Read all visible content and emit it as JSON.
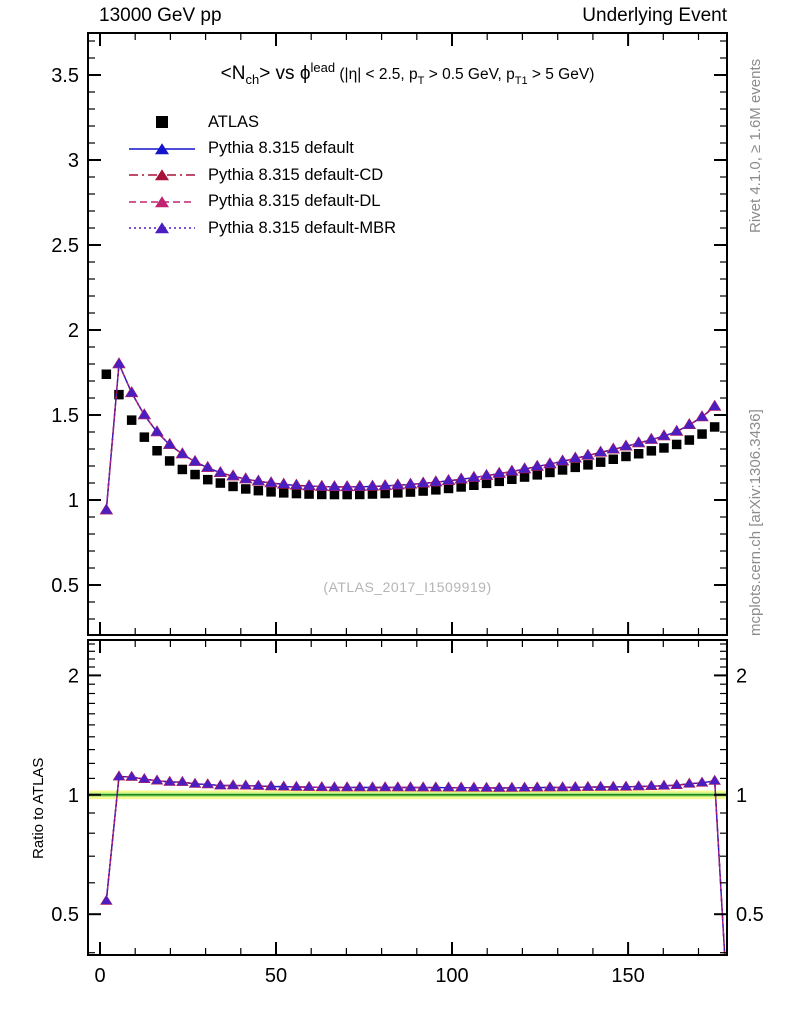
{
  "header": {
    "left": "13000 GeV pp",
    "right": "Underlying Event"
  },
  "side_labels": {
    "right_top": "Rivet 4.1.0, ≥ 1.6M events",
    "right_bottom": "mcplots.cern.ch [arXiv:1306.3436]",
    "watermark": "(ATLAS_2017_I1509919)",
    "ratio_ylabel": "Ratio to ATLAS"
  },
  "chart_data": {
    "type": "scatter",
    "panels": [
      "main",
      "ratio"
    ],
    "title_plain": "<N_ch> vs φ^lead (|η| < 2.5, p_T > 0.5 GeV, p_T1 > 5 GeV)",
    "title_segments": [
      {
        "t": "<N",
        "s": "t1"
      },
      {
        "t": "ch",
        "s": "t1sub"
      },
      {
        "t": "> vs ",
        "s": "t1"
      },
      {
        "t": "ϕ",
        "s": "t1"
      },
      {
        "t": "lead",
        "s": "t1sup"
      },
      {
        "t": " (|η| < 2.5, p",
        "s": "t2"
      },
      {
        "t": "T",
        "s": "t2sub"
      },
      {
        "t": " > 0.5 GeV, p",
        "s": "t2"
      },
      {
        "t": "T1",
        "s": "t2sub"
      },
      {
        "t": " > 5 GeV)",
        "s": "t2"
      }
    ],
    "x_bins": [
      1.8,
      5.4,
      9,
      12.6,
      16.2,
      19.8,
      23.4,
      27,
      30.6,
      34.2,
      37.8,
      41.4,
      45,
      48.6,
      52.2,
      55.8,
      59.4,
      63,
      66.6,
      70.2,
      73.8,
      77.4,
      81,
      84.6,
      88.2,
      91.8,
      95.4,
      99,
      102.6,
      106.2,
      109.8,
      113.4,
      117,
      120.6,
      124.2,
      127.8,
      131.4,
      135,
      138.6,
      142.2,
      145.8,
      149.4,
      153,
      156.6,
      160.2,
      163.8,
      167.4,
      171,
      174.6
    ],
    "series": [
      {
        "label": "ATLAS",
        "marker": "square",
        "color": "#000000",
        "line": "none",
        "values": [
          1.74,
          1.62,
          1.47,
          1.37,
          1.29,
          1.23,
          1.18,
          1.15,
          1.12,
          1.1,
          1.08,
          1.065,
          1.055,
          1.048,
          1.042,
          1.038,
          1.035,
          1.033,
          1.032,
          1.032,
          1.033,
          1.035,
          1.038,
          1.042,
          1.047,
          1.053,
          1.06,
          1.068,
          1.077,
          1.087,
          1.098,
          1.11,
          1.122,
          1.135,
          1.148,
          1.162,
          1.177,
          1.192,
          1.207,
          1.223,
          1.24,
          1.256,
          1.272,
          1.289,
          1.306,
          1.327,
          1.353,
          1.388,
          1.43
        ]
      },
      {
        "label": "Pythia 8.315 default",
        "marker": "triangle",
        "color": "#1414cc",
        "line": "solid",
        "values": [
          0.94,
          1.8,
          1.63,
          1.5,
          1.4,
          1.325,
          1.27,
          1.225,
          1.19,
          1.16,
          1.14,
          1.123,
          1.11,
          1.1,
          1.092,
          1.086,
          1.082,
          1.079,
          1.077,
          1.077,
          1.078,
          1.08,
          1.083,
          1.087,
          1.092,
          1.098,
          1.105,
          1.113,
          1.122,
          1.132,
          1.143,
          1.155,
          1.168,
          1.182,
          1.197,
          1.212,
          1.228,
          1.245,
          1.262,
          1.28,
          1.298,
          1.316,
          1.335,
          1.355,
          1.376,
          1.403,
          1.442,
          1.488,
          1.55
        ]
      },
      {
        "label": "Pythia 8.315 default-CD",
        "marker": "triangle",
        "color": "#a81238",
        "line": "dashdot",
        "values": [
          0.94,
          1.8,
          1.63,
          1.5,
          1.4,
          1.325,
          1.27,
          1.225,
          1.19,
          1.16,
          1.14,
          1.123,
          1.11,
          1.1,
          1.092,
          1.086,
          1.082,
          1.079,
          1.077,
          1.077,
          1.078,
          1.08,
          1.083,
          1.087,
          1.092,
          1.098,
          1.105,
          1.113,
          1.122,
          1.132,
          1.143,
          1.155,
          1.168,
          1.182,
          1.197,
          1.212,
          1.228,
          1.245,
          1.262,
          1.28,
          1.298,
          1.316,
          1.335,
          1.355,
          1.376,
          1.403,
          1.442,
          1.488,
          1.55
        ]
      },
      {
        "label": "Pythia 8.315 default-DL",
        "marker": "triangle",
        "color": "#c02470",
        "line": "dashed",
        "values": [
          0.94,
          1.8,
          1.63,
          1.5,
          1.4,
          1.325,
          1.27,
          1.225,
          1.19,
          1.16,
          1.14,
          1.123,
          1.11,
          1.1,
          1.092,
          1.086,
          1.082,
          1.079,
          1.077,
          1.077,
          1.078,
          1.08,
          1.083,
          1.087,
          1.092,
          1.098,
          1.105,
          1.113,
          1.122,
          1.132,
          1.143,
          1.155,
          1.168,
          1.182,
          1.197,
          1.212,
          1.228,
          1.245,
          1.262,
          1.28,
          1.298,
          1.316,
          1.335,
          1.355,
          1.376,
          1.403,
          1.442,
          1.488,
          1.55
        ]
      },
      {
        "label": "Pythia 8.315 default-MBR",
        "marker": "triangle",
        "color": "#4a1ec0",
        "line": "dotted",
        "values": [
          0.94,
          1.8,
          1.63,
          1.5,
          1.4,
          1.325,
          1.27,
          1.225,
          1.19,
          1.16,
          1.14,
          1.123,
          1.11,
          1.1,
          1.092,
          1.086,
          1.082,
          1.079,
          1.077,
          1.077,
          1.078,
          1.08,
          1.083,
          1.087,
          1.092,
          1.098,
          1.105,
          1.113,
          1.122,
          1.132,
          1.143,
          1.155,
          1.168,
          1.182,
          1.197,
          1.212,
          1.228,
          1.245,
          1.262,
          1.28,
          1.298,
          1.316,
          1.335,
          1.355,
          1.376,
          1.403,
          1.442,
          1.488,
          1.55
        ]
      }
    ],
    "ratio": {
      "reference": "ATLAS",
      "tail": {
        "x": 178.2,
        "value": 0.3
      },
      "band": {
        "yellow": [
          0.975,
          1.025
        ],
        "green": [
          0.988,
          1.012
        ],
        "line_at": 1.0,
        "yellow_color": "#f7f98b",
        "green_color": "#a6e77e",
        "line_color": "#0b7a0b"
      }
    },
    "axes": {
      "x": {
        "lim": [
          -3.4,
          178.1
        ],
        "major": [
          0,
          50,
          100,
          150
        ],
        "labels": [
          "0",
          "50",
          "100",
          "150"
        ],
        "minor_step": 10
      },
      "y_main": {
        "scale": "linear",
        "lim": [
          0.206,
          3.747
        ],
        "major": [
          0.5,
          1,
          1.5,
          2,
          2.5,
          3,
          3.5
        ],
        "labels": [
          "0.5",
          "1",
          "1.5",
          "2",
          "2.5",
          "3",
          "3.5"
        ],
        "minor_step": 0.1
      },
      "y_ratio": {
        "scale": "log",
        "lim": [
          0.3946,
          2.456
        ],
        "major": [
          0.5,
          1,
          2
        ],
        "labels": [
          "0.5",
          "1",
          "2"
        ],
        "minors": [
          0.4,
          0.6,
          0.7,
          0.8,
          0.9,
          1.1,
          1.2,
          1.3,
          1.4,
          1.5,
          1.6,
          1.7,
          1.8,
          1.9,
          2.1,
          2.2,
          2.3,
          2.4
        ]
      }
    }
  }
}
